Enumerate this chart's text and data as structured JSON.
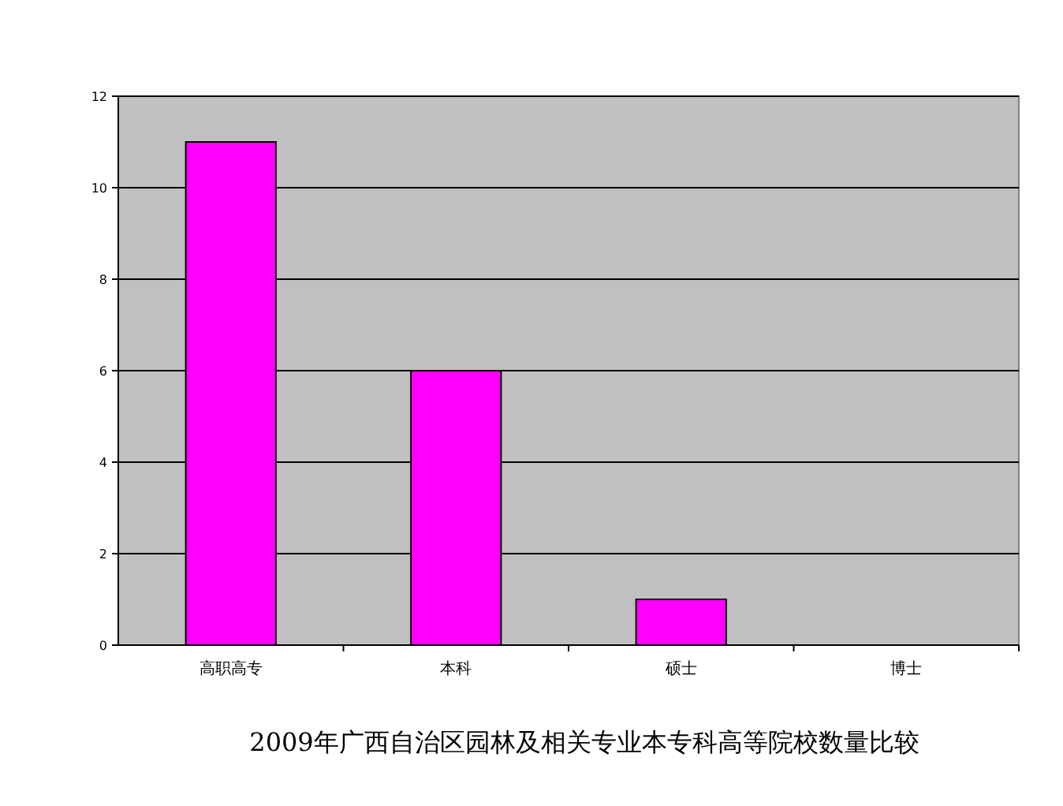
{
  "chart_data": {
    "type": "bar",
    "title": "2009年广西自治区园林及相关专业本专科高等院校数量比较",
    "categories": [
      "高职高专",
      "本科",
      "硕士",
      "博士"
    ],
    "values": [
      11,
      6,
      1,
      0
    ],
    "color": "#ff00ff",
    "ylim": [
      0,
      12
    ],
    "yticks": [
      0,
      2,
      4,
      6,
      8,
      10,
      12
    ],
    "grid": "y"
  }
}
